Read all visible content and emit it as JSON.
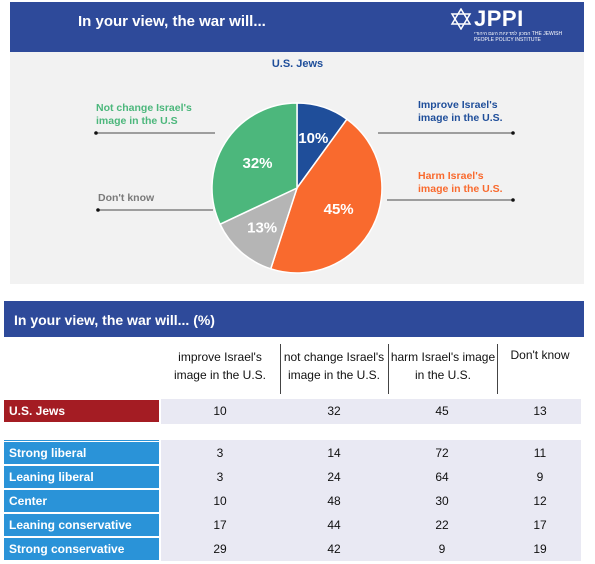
{
  "top": {
    "title": "In your view, the war will...",
    "logo": "JPPI",
    "logo_sub": "המכון למדיניות העם היהודי THE JEWISH PEOPLE POLICY INSTITUTE"
  },
  "colors": {
    "header_blue": "#2e4a9a",
    "improve": "#1f4e9a",
    "not_change": "#4cb77c",
    "harm": "#f96a2e",
    "dont_know": "#b5b5b5",
    "us_jews_row": "#a41c23",
    "group_row": "#2a93d8"
  },
  "chart_data": {
    "type": "pie",
    "title": "U.S. Jews",
    "series": [
      {
        "name": "Improve Israel's image in the U.S.",
        "value": 10,
        "label": "10%",
        "color": "#1f4e9a"
      },
      {
        "name": "Harm Israel's image in the U.S.",
        "value": 45,
        "label": "45%",
        "color": "#f96a2e"
      },
      {
        "name": "Don't know",
        "value": 13,
        "label": "13%",
        "color": "#b5b5b5"
      },
      {
        "name": "Not change Israel's image in the U.S",
        "value": 32,
        "label": "32%",
        "color": "#4cb77c"
      }
    ]
  },
  "annotations": {
    "not_change": [
      "Not change Israel's",
      "image in the U.S"
    ],
    "improve": [
      "Improve Israel's",
      "image in the U.S."
    ],
    "harm": [
      "Harm Israel's",
      "image in the U.S."
    ],
    "dont_know": [
      "Don't know"
    ]
  },
  "table": {
    "title": "In your view, the war will... (%)",
    "columns": [
      [
        "improve Israel's",
        "image in the U.S."
      ],
      [
        "not change Israel's",
        "image in the U.S."
      ],
      [
        "harm Israel's image",
        "in the U.S."
      ],
      [
        "Don't know"
      ]
    ],
    "total_row": {
      "label": "U.S. Jews",
      "values": [
        "10",
        "32",
        "45",
        "13"
      ]
    },
    "rows": [
      {
        "label": "Strong liberal",
        "values": [
          "3",
          "14",
          "72",
          "11"
        ]
      },
      {
        "label": "Leaning liberal",
        "values": [
          "3",
          "24",
          "64",
          "9"
        ]
      },
      {
        "label": "Center",
        "values": [
          "10",
          "48",
          "30",
          "12"
        ]
      },
      {
        "label": "Leaning conservative",
        "values": [
          "17",
          "44",
          "22",
          "17"
        ]
      },
      {
        "label": "Strong conservative",
        "values": [
          "29",
          "42",
          "9",
          "19"
        ]
      }
    ]
  }
}
